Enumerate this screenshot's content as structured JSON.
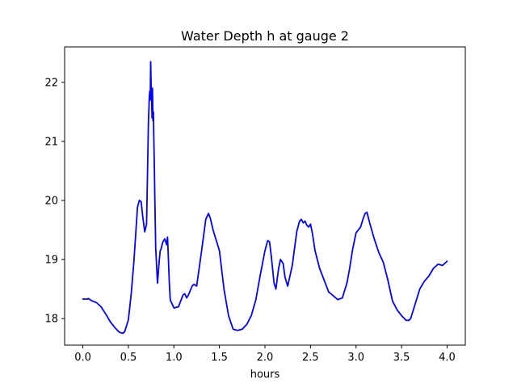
{
  "chart_data": {
    "type": "line",
    "title": "Water Depth h at gauge 2",
    "xlabel": "hours",
    "ylabel": "",
    "xlim": [
      -0.2,
      4.2
    ],
    "ylim": [
      17.55,
      22.6
    ],
    "xticks": [
      0.0,
      0.5,
      1.0,
      1.5,
      2.0,
      2.5,
      3.0,
      3.5,
      4.0
    ],
    "xtick_labels": [
      "0.0",
      "0.5",
      "1.0",
      "1.5",
      "2.0",
      "2.5",
      "3.0",
      "3.5",
      "4.0"
    ],
    "yticks": [
      18,
      19,
      20,
      21,
      22
    ],
    "ytick_labels": [
      "18",
      "19",
      "20",
      "21",
      "22"
    ],
    "grid": false,
    "legend": "none",
    "series": [
      {
        "color": "#0000ff",
        "x": [
          0.0,
          0.05,
          0.06,
          0.1,
          0.15,
          0.2,
          0.25,
          0.3,
          0.35,
          0.4,
          0.44,
          0.46,
          0.5,
          0.53,
          0.56,
          0.6,
          0.62,
          0.64,
          0.66,
          0.68,
          0.7,
          0.72,
          0.73,
          0.735,
          0.74,
          0.745,
          0.75,
          0.755,
          0.76,
          0.765,
          0.77,
          0.775,
          0.78,
          0.785,
          0.79,
          0.8,
          0.82,
          0.84,
          0.85,
          0.86,
          0.87,
          0.88,
          0.9,
          0.92,
          0.93,
          0.94,
          0.95,
          0.96,
          0.97,
          0.98,
          1.0,
          1.05,
          1.1,
          1.12,
          1.14,
          1.16,
          1.2,
          1.22,
          1.25,
          1.3,
          1.35,
          1.38,
          1.4,
          1.43,
          1.5,
          1.55,
          1.6,
          1.65,
          1.7,
          1.75,
          1.8,
          1.85,
          1.9,
          1.95,
          2.0,
          2.03,
          2.05,
          2.07,
          2.1,
          2.12,
          2.15,
          2.17,
          2.2,
          2.22,
          2.25,
          2.3,
          2.35,
          2.38,
          2.4,
          2.42,
          2.44,
          2.46,
          2.48,
          2.5,
          2.52,
          2.55,
          2.6,
          2.7,
          2.8,
          2.85,
          2.9,
          2.93,
          2.96,
          3.0,
          3.05,
          3.08,
          3.1,
          3.12,
          3.15,
          3.2,
          3.25,
          3.3,
          3.35,
          3.4,
          3.45,
          3.5,
          3.55,
          3.58,
          3.6,
          3.65,
          3.7,
          3.75,
          3.8,
          3.85,
          3.9,
          3.95,
          4.0
        ],
        "y": [
          18.33,
          18.33,
          18.34,
          18.3,
          18.27,
          18.2,
          18.08,
          17.95,
          17.85,
          17.77,
          17.75,
          17.78,
          17.98,
          18.4,
          18.95,
          19.88,
          20.0,
          19.98,
          19.7,
          19.47,
          19.6,
          21.3,
          21.75,
          21.85,
          21.7,
          22.35,
          21.95,
          21.8,
          21.4,
          21.9,
          21.35,
          21.5,
          21.0,
          20.6,
          20.1,
          19.2,
          18.6,
          19.0,
          19.15,
          19.18,
          19.25,
          19.3,
          19.35,
          19.25,
          19.38,
          19.0,
          18.6,
          18.32,
          18.28,
          18.25,
          18.18,
          18.2,
          18.4,
          18.42,
          18.35,
          18.4,
          18.55,
          18.58,
          18.55,
          19.1,
          19.68,
          19.78,
          19.7,
          19.5,
          19.15,
          18.5,
          18.05,
          17.82,
          17.8,
          17.82,
          17.9,
          18.05,
          18.32,
          18.75,
          19.15,
          19.32,
          19.3,
          19.05,
          18.6,
          18.5,
          18.85,
          19.0,
          18.93,
          18.7,
          18.55,
          18.9,
          19.48,
          19.65,
          19.68,
          19.62,
          19.65,
          19.58,
          19.55,
          19.6,
          19.45,
          19.15,
          18.85,
          18.45,
          18.32,
          18.35,
          18.6,
          18.85,
          19.15,
          19.45,
          19.55,
          19.7,
          19.78,
          19.8,
          19.62,
          19.35,
          19.12,
          18.95,
          18.65,
          18.3,
          18.15,
          18.05,
          17.97,
          17.97,
          18.0,
          18.25,
          18.5,
          18.63,
          18.72,
          18.85,
          18.92,
          18.9,
          18.97
        ]
      }
    ]
  }
}
